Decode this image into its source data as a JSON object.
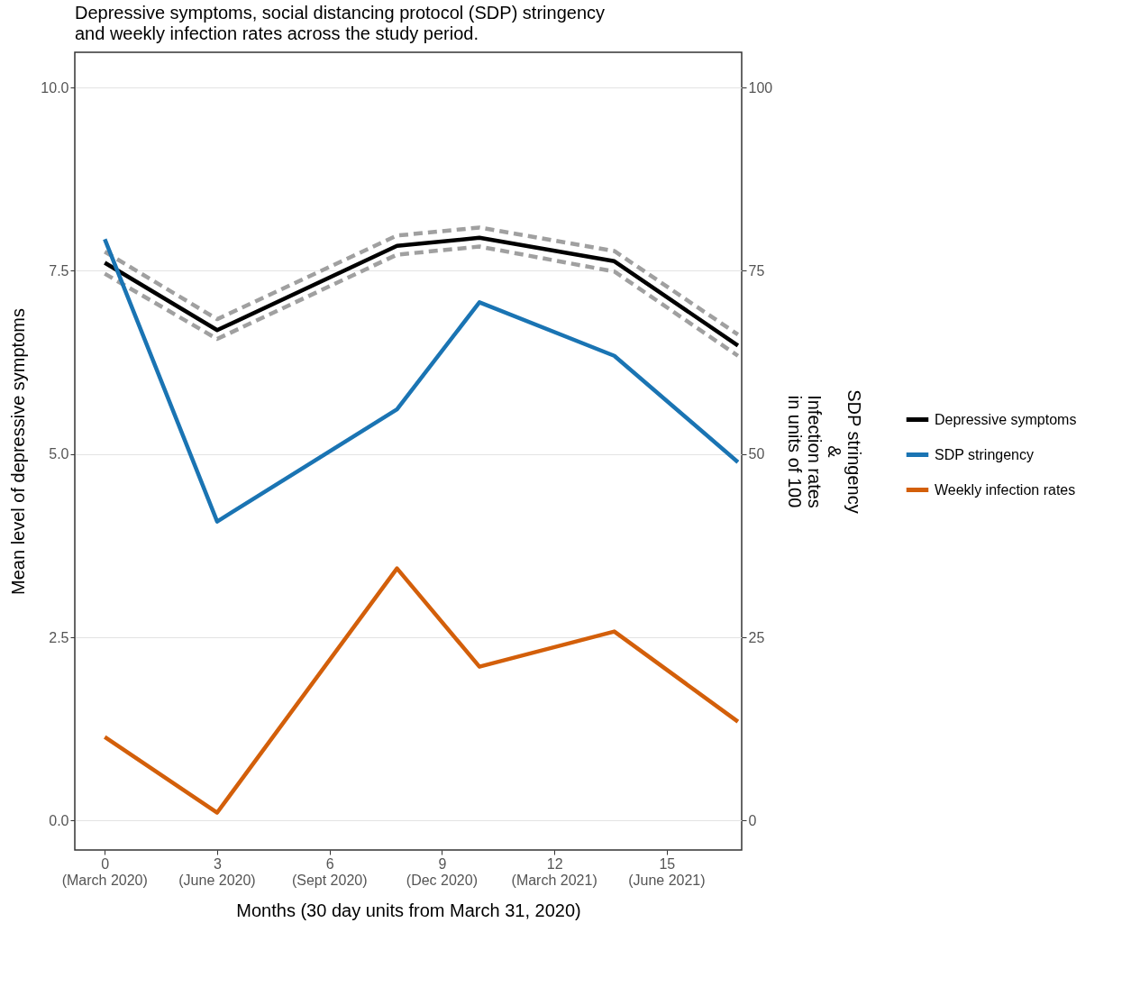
{
  "chart_data": {
    "type": "line",
    "title": "Depressive symptoms, social distancing protocol (SDP) stringency\nand weekly infection rates across the study period.",
    "xlabel": "Months (30 day units from March 31, 2020)",
    "ylabel": "Mean level of depressive symptoms",
    "y2label": "SDP stringency\n&\nInfection rates\nin units of 100",
    "x": [
      0,
      3,
      7.8,
      10,
      13.6,
      16.9
    ],
    "series": [
      {
        "color": "#a0a0a0",
        "line_style": "dashed",
        "values": [
          7.76,
          6.84,
          7.98,
          8.09,
          7.77,
          6.63
        ]
      },
      {
        "color": "#a0a0a0",
        "line_style": "dashed",
        "values": [
          7.46,
          6.57,
          7.72,
          7.83,
          7.49,
          6.34
        ]
      },
      {
        "name": "Depressive symptoms",
        "color": "#000000",
        "values": [
          7.61,
          6.69,
          7.84,
          7.95,
          7.63,
          6.48
        ]
      },
      {
        "name": "SDP stringency",
        "color": "#1a74b3",
        "axis": "y2",
        "values": [
          79.3,
          40.8,
          56.1,
          70.7,
          63.4,
          48.9
        ]
      },
      {
        "name": "Weekly infection rates",
        "color": "#d35f0a",
        "axis": "y2",
        "values": [
          11.4,
          1.1,
          34.4,
          21.0,
          25.8,
          13.5
        ]
      }
    ],
    "xlim": [
      -0.8,
      17.0
    ],
    "xticks": [
      0,
      3,
      6,
      9,
      12,
      15
    ],
    "annotations": [
      "(March 2020)",
      "(June 2020)",
      "(Sept 2020)",
      "(Dec 2020)",
      "(March 2021)",
      "(June 2021)"
    ],
    "ylim": [
      -0.4,
      10.48
    ],
    "yticks": [
      {
        "value": 0,
        "label": "0.0"
      },
      2.5,
      {
        "value": 5,
        "label": "5.0"
      },
      7.5,
      {
        "value": 10,
        "label": "10.0"
      }
    ],
    "y2lim": [
      -4,
      104.8
    ],
    "y2ticks": [
      0,
      25,
      50,
      75,
      100
    ],
    "grid": "y",
    "legend": "right",
    "line_style": "solid",
    "marker": "none"
  }
}
